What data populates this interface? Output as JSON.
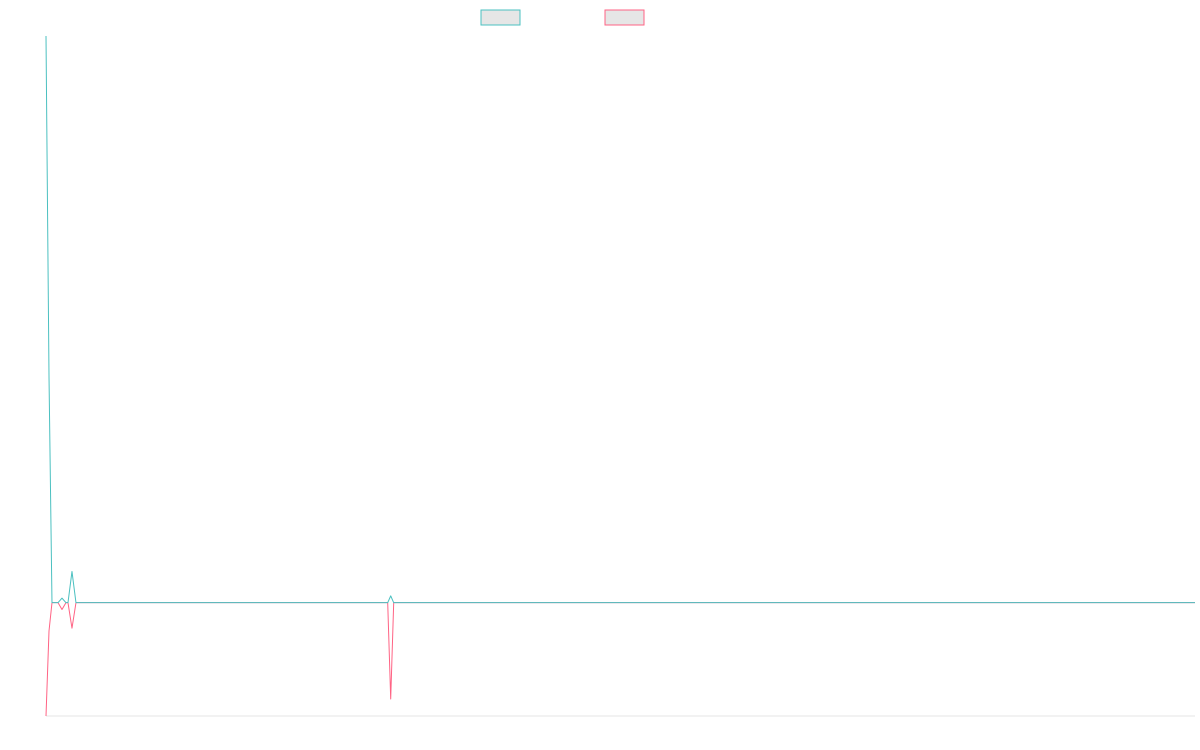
{
  "chart_data": {
    "type": "line",
    "title": "",
    "xlabel": "",
    "ylabel": "",
    "grid": false,
    "legend_position": "top",
    "ylim": [
      -0.2,
      1.0
    ],
    "xlim": [
      0,
      115
    ],
    "series": [
      {
        "name": "",
        "color": "#4bc0c0",
        "points": [
          [
            0,
            1.0
          ],
          [
            0.3,
            0.4
          ],
          [
            0.6,
            0.0
          ],
          [
            1.2,
            0.0
          ],
          [
            1.6,
            0.008
          ],
          [
            2.0,
            0.0
          ],
          [
            2.2,
            0.0
          ],
          [
            2.6,
            0.055
          ],
          [
            3.0,
            0.0
          ],
          [
            34.2,
            0.0
          ],
          [
            34.5,
            0.012
          ],
          [
            34.8,
            0.0
          ],
          [
            115,
            0.0
          ]
        ]
      },
      {
        "name": "",
        "color": "#ff6384",
        "points": [
          [
            0,
            -0.2
          ],
          [
            0.3,
            -0.05
          ],
          [
            0.6,
            0.0
          ],
          [
            1.2,
            0.0
          ],
          [
            1.6,
            -0.012
          ],
          [
            2.0,
            0.0
          ],
          [
            2.2,
            0.0
          ],
          [
            2.6,
            -0.045
          ],
          [
            3.0,
            0.0
          ],
          [
            34.2,
            0.0
          ],
          [
            34.5,
            -0.17
          ],
          [
            34.8,
            0.0
          ],
          [
            115,
            0.0
          ]
        ]
      }
    ]
  }
}
